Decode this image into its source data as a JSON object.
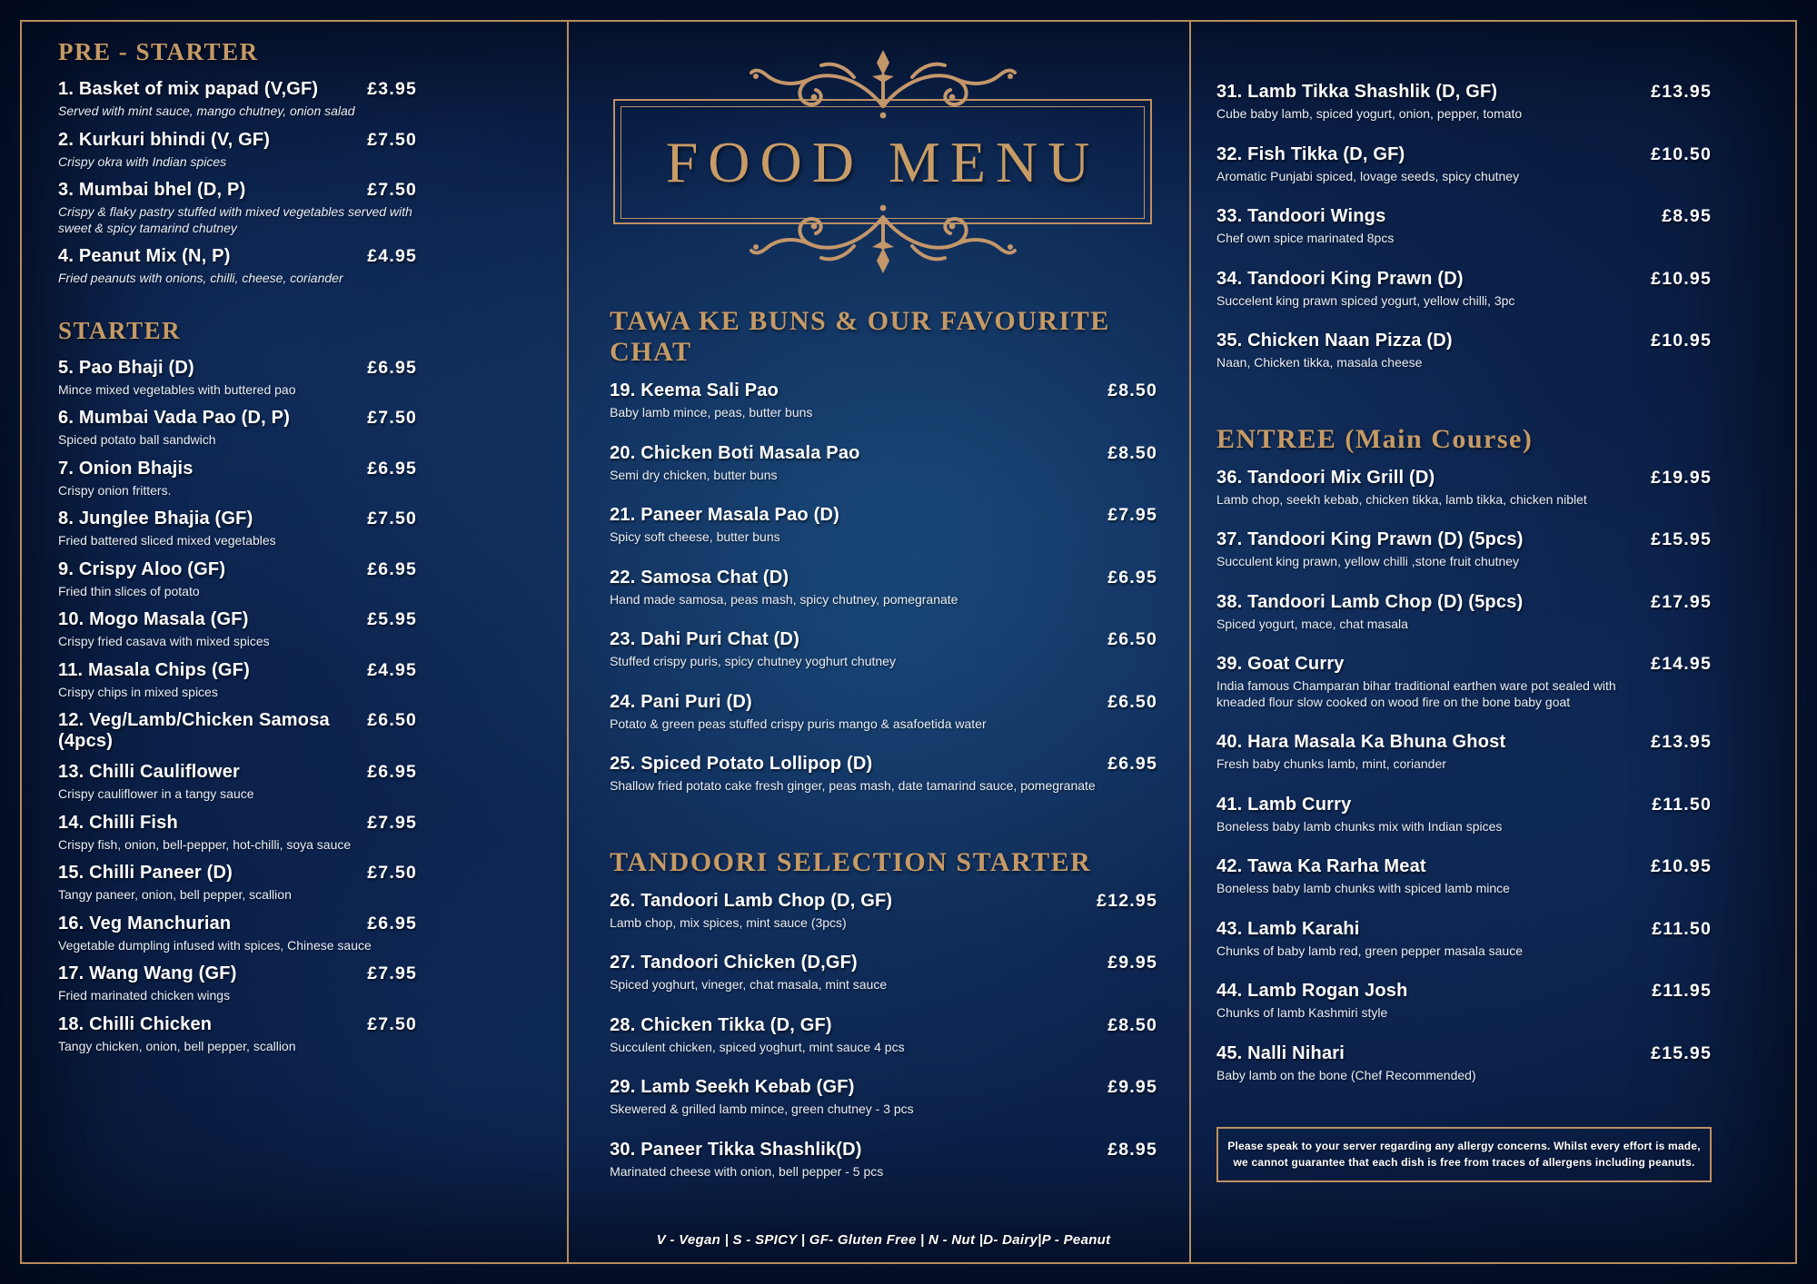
{
  "title": "FOOD MENU",
  "colors": {
    "background": "#0b2048",
    "gold": "#c59a66",
    "text": "#ffffff"
  },
  "legend": "V - Vegan | S - SPICY | GF- Gluten Free | N - Nut |D- Dairy|P - Peanut",
  "allergy_notice": {
    "line1": "Please speak to your server regarding any allergy concerns. Whilst every effort is made,",
    "line2": "we cannot guarantee that each dish is free from traces of allergens including peanuts."
  },
  "sections": [
    {
      "id": "pre-starter",
      "column": "left",
      "heading": "PRE - STARTER",
      "desc_italic": true,
      "items": [
        {
          "title": "1. Basket of mix papad (V,GF)",
          "desc": "Served with mint sauce, mango chutney, onion salad",
          "price": "£3.95"
        },
        {
          "title": "2. Kurkuri bhindi (V, GF)",
          "desc": "Crispy okra with Indian spices",
          "price": "£7.50"
        },
        {
          "title": "3. Mumbai bhel (D, P)",
          "desc": "Crispy & flaky pastry stuffed with mixed vegetables served with sweet & spicy tamarind chutney",
          "price": "£7.50"
        },
        {
          "title": "4. Peanut Mix (N, P)",
          "desc": "Fried peanuts with onions, chilli, cheese, coriander",
          "price": "£4.95"
        }
      ]
    },
    {
      "id": "starter",
      "column": "left",
      "heading": "STARTER",
      "gap": true,
      "items": [
        {
          "title": "5. Pao Bhaji (D)",
          "desc": "Mince mixed vegetables with buttered pao",
          "price": "£6.95"
        },
        {
          "title": "6. Mumbai Vada Pao (D, P)",
          "desc": "Spiced potato ball sandwich",
          "price": "£7.50"
        },
        {
          "title": "7. Onion Bhajis",
          "desc": "Crispy onion fritters.",
          "price": "£6.95"
        },
        {
          "title": "8. Junglee Bhajia (GF)",
          "desc": "Fried battered sliced mixed vegetables",
          "price": "£7.50"
        },
        {
          "title": "9. Crispy Aloo (GF)",
          "desc": "Fried thin slices of potato",
          "price": "£6.95"
        },
        {
          "title": "10. Mogo Masala (GF)",
          "desc": "Crispy fried casava with mixed spices",
          "price": "£5.95"
        },
        {
          "title": "11. Masala Chips (GF)",
          "desc": "Crispy chips in mixed spices",
          "price": "£4.95"
        },
        {
          "title": "12. Veg/Lamb/Chicken Samosa (4pcs)",
          "desc": "",
          "price": "£6.50"
        },
        {
          "title": "13. Chilli Cauliflower",
          "desc": "Crispy cauliflower in a tangy sauce",
          "price": "£6.95"
        },
        {
          "title": "14. Chilli Fish",
          "desc": "Crispy fish, onion, bell-pepper, hot-chilli, soya sauce",
          "price": "£7.95"
        },
        {
          "title": "15. Chilli Paneer (D)",
          "desc": "Tangy paneer, onion, bell pepper, scallion",
          "price": "£7.50"
        },
        {
          "title": "16. Veg Manchurian",
          "desc": "Vegetable dumpling infused with spices, Chinese sauce",
          "price": "£6.95"
        },
        {
          "title": "17. Wang Wang (GF)",
          "desc": "Fried marinated chicken wings",
          "price": "£7.95"
        },
        {
          "title": "18. Chilli Chicken",
          "desc": "Tangy chicken, onion, bell pepper, scallion",
          "price": "£7.50"
        }
      ]
    },
    {
      "id": "tawa",
      "column": "middle",
      "heading": "TAWA KE BUNS & OUR FAVOURITE CHAT",
      "heading_class": "lg",
      "items": [
        {
          "title": "19. Keema Sali Pao",
          "desc": "Baby lamb mince, peas, butter buns",
          "price": "£8.50"
        },
        {
          "title": "20. Chicken Boti Masala Pao",
          "desc": "Semi dry chicken, butter buns",
          "price": "£8.50"
        },
        {
          "title": "21. Paneer Masala Pao (D)",
          "desc": "Spicy soft cheese, butter buns",
          "price": "£7.95"
        },
        {
          "title": "22. Samosa Chat (D)",
          "desc": "Hand made samosa, peas mash, spicy chutney, pomegranate",
          "price": "£6.95"
        },
        {
          "title": "23. Dahi Puri Chat (D)",
          "desc": "Stuffed crispy puris, spicy chutney yoghurt chutney",
          "price": "£6.50"
        },
        {
          "title": "24. Pani Puri (D)",
          "desc": "Potato & green peas stuffed crispy puris mango & asafoetida water",
          "price": "£6.50"
        },
        {
          "title": "25. Spiced Potato Lollipop (D)",
          "desc": "Shallow fried potato cake fresh ginger, peas mash, date tamarind sauce, pomegranate",
          "price": "£6.95"
        }
      ]
    },
    {
      "id": "tandoori",
      "column": "middle",
      "heading": "TANDOORI SELECTION STARTER",
      "heading_class": "lg",
      "gap": true,
      "items": [
        {
          "title": "26. Tandoori Lamb Chop (D, GF)",
          "desc": "Lamb chop, mix spices, mint sauce (3pcs)",
          "price": "£12.95"
        },
        {
          "title": "27. Tandoori Chicken (D,GF)",
          "desc": "Spiced yoghurt, vineger, chat masala, mint sauce",
          "price": "£9.95"
        },
        {
          "title": "28. Chicken Tikka (D, GF)",
          "desc": "Succulent chicken, spiced yoghurt, mint sauce 4 pcs",
          "price": "£8.50"
        },
        {
          "title": "29. Lamb Seekh Kebab (GF)",
          "desc": "Skewered & grilled lamb mince, green chutney - 3 pcs",
          "price": "£9.95"
        },
        {
          "title": "30. Paneer Tikka Shashlik(D)",
          "desc": "Marinated cheese with onion, bell pepper - 5 pcs",
          "price": "£8.95"
        }
      ]
    },
    {
      "id": "tandoori-cont",
      "column": "right",
      "items": [
        {
          "title": "31. Lamb Tikka Shashlik (D, GF)",
          "desc": "Cube baby lamb, spiced yogurt, onion, pepper, tomato",
          "price": "£13.95"
        },
        {
          "title": "32. Fish Tikka (D, GF)",
          "desc": "Aromatic Punjabi spiced, lovage seeds, spicy chutney",
          "price": "£10.50"
        },
        {
          "title": "33. Tandoori Wings",
          "desc": "Chef own spice marinated 8pcs",
          "price": "£8.95"
        },
        {
          "title": "34. Tandoori King Prawn (D)",
          "desc": "Succelent king prawn spiced yogurt, yellow chilli, 3pc",
          "price": "£10.95"
        },
        {
          "title": "35. Chicken Naan Pizza (D)",
          "desc": "Naan, Chicken tikka, masala cheese",
          "price": "£10.95"
        }
      ]
    },
    {
      "id": "entree",
      "column": "right",
      "heading": "ENTREE (Main Course)",
      "heading_class": "lg",
      "gap": true,
      "items": [
        {
          "title": "36. Tandoori Mix Grill (D)",
          "desc": "Lamb chop, seekh kebab, chicken tikka, lamb tikka, chicken niblet",
          "price": "£19.95"
        },
        {
          "title": "37. Tandoori King Prawn (D) (5pcs)",
          "desc": "Succulent king prawn, yellow chilli ,stone fruit chutney",
          "price": "£15.95"
        },
        {
          "title": "38. Tandoori Lamb Chop (D) (5pcs)",
          "desc": "Spiced yogurt, mace, chat masala",
          "price": "£17.95"
        },
        {
          "title": "39. Goat Curry",
          "desc": "India famous Champaran bihar traditional earthen ware pot sealed with kneaded flour slow cooked on wood fire on the bone baby goat",
          "price": "£14.95"
        },
        {
          "title": "40. Hara Masala Ka Bhuna Ghost",
          "desc": "Fresh baby chunks lamb, mint, coriander",
          "price": "£13.95"
        },
        {
          "title": "41. Lamb Curry",
          "desc": "Boneless baby lamb chunks mix with Indian spices",
          "price": "£11.50"
        },
        {
          "title": "42. Tawa Ka Rarha Meat",
          "desc": "Boneless baby lamb chunks with spiced lamb mince",
          "price": "£10.95"
        },
        {
          "title": "43. Lamb Karahi",
          "desc": "Chunks of baby lamb red, green pepper masala sauce",
          "price": "£11.50"
        },
        {
          "title": "44. Lamb Rogan Josh",
          "desc": "Chunks of lamb Kashmiri style",
          "price": "£11.95"
        },
        {
          "title": "45. Nalli Nihari",
          "desc": "Baby lamb on the bone (Chef Recommended)",
          "price": "£15.95"
        }
      ]
    }
  ]
}
